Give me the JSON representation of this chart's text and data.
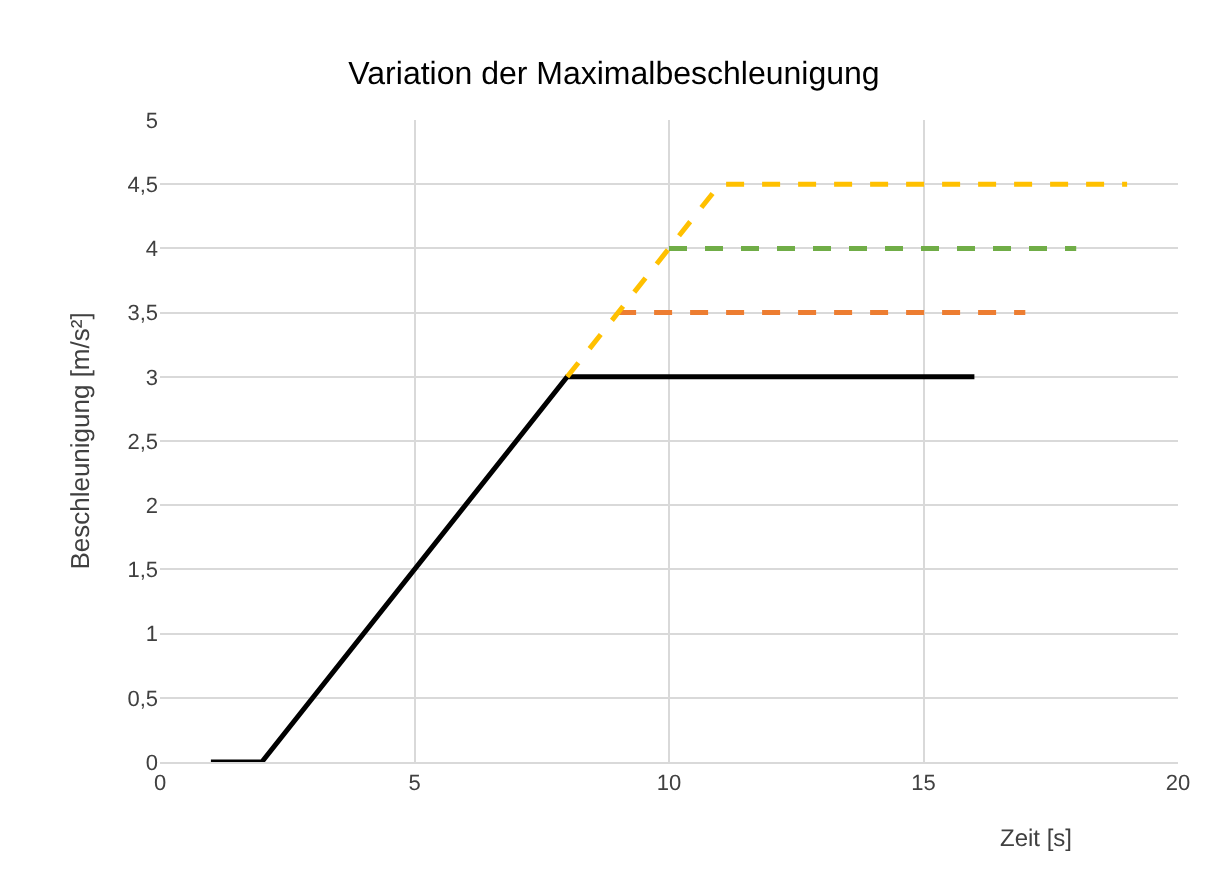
{
  "chart_data": {
    "type": "line",
    "title": "Variation der Maximalbeschleunigung",
    "xlabel": "Zeit [s]",
    "ylabel": "Beschleunigung [m/s²]",
    "series": [
      {
        "color": "#000000",
        "x": [
          1,
          2,
          8,
          16
        ],
        "values": [
          0,
          0,
          3,
          3
        ],
        "line_style": "solid"
      },
      {
        "color": "#ed7d31",
        "x": [
          9,
          17
        ],
        "values": [
          3.5,
          3.5
        ],
        "line_style": "dashed"
      },
      {
        "color": "#70ad47",
        "x": [
          10,
          18
        ],
        "values": [
          4,
          4
        ],
        "line_style": "dashed"
      },
      {
        "color": "#ffc000",
        "x": [
          8,
          11,
          19
        ],
        "values": [
          3,
          4.5,
          4.5
        ],
        "line_style": "dashed"
      }
    ],
    "xlim": [
      0,
      20
    ],
    "xticks": [
      0,
      5,
      10,
      15,
      20
    ],
    "ylim": [
      0,
      5
    ],
    "yticks": [
      0,
      {
        "value": 0.5,
        "label": "0,5"
      },
      1,
      {
        "value": 1.5,
        "label": "1,5"
      },
      2,
      {
        "value": 2.5,
        "label": "2,5"
      },
      3,
      {
        "value": 3.5,
        "label": "3,5"
      },
      4,
      {
        "value": 4.5,
        "label": "4,5"
      },
      5
    ],
    "grid": true
  }
}
